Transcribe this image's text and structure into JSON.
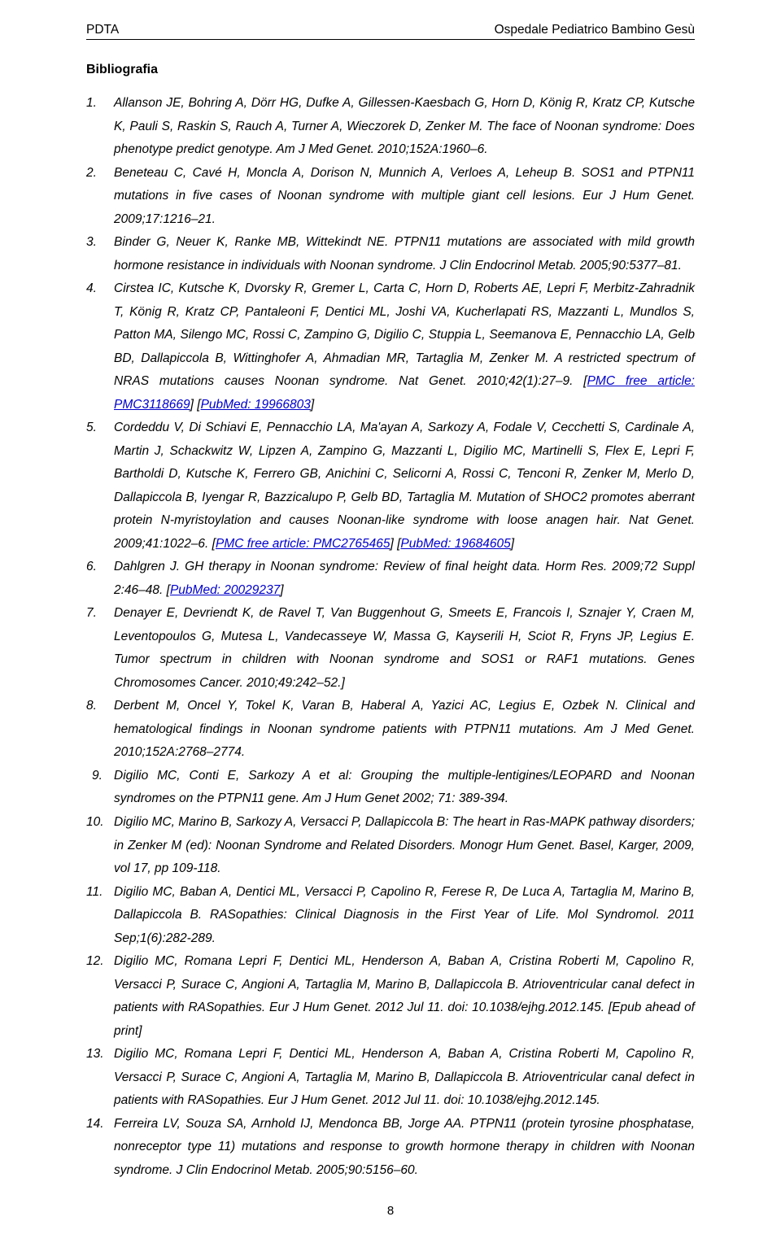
{
  "header": {
    "left": "PDTA",
    "right": "Ospedale Pediatrico Bambino Gesù"
  },
  "section_title": "Bibliografia",
  "page_number": "8",
  "refs": [
    {
      "num": "1.",
      "parts": [
        {
          "t": "Allanson JE, Bohring A, Dörr HG, Dufke A, Gillessen-Kaesbach G, Horn D, König R, Kratz CP, Kutsche K, Pauli S, Raskin S, Rauch A, Turner A, Wieczorek D, Zenker M. The face of Noonan syndrome: Does phenotype predict genotype. Am J Med Genet. 2010;152A:1960–6."
        }
      ]
    },
    {
      "num": "2.",
      "parts": [
        {
          "t": "Beneteau C, Cavé H, Moncla A, Dorison N, Munnich A, Verloes A, Leheup B. SOS1 and PTPN11 mutations in five cases of Noonan syndrome with multiple giant cell lesions. Eur J Hum Genet. 2009;17:1216–21."
        }
      ]
    },
    {
      "num": "3.",
      "parts": [
        {
          "t": "Binder G, Neuer K, Ranke MB, Wittekindt NE. PTPN11 mutations are associated with mild growth hormone resistance in individuals with Noonan syndrome. J Clin Endocrinol Metab. 2005;90:5377–81."
        }
      ]
    },
    {
      "num": "4.",
      "parts": [
        {
          "t": "Cirstea IC, Kutsche K, Dvorsky R, Gremer L, Carta C, Horn D, Roberts AE, Lepri F, Merbitz-Zahradnik T, König R, Kratz CP, Pantaleoni F, Dentici ML, Joshi VA, Kucherlapati RS, Mazzanti L, Mundlos S, Patton MA, Silengo MC, Rossi C, Zampino G, Digilio C, Stuppia L, Seemanova E, Pennacchio LA, Gelb BD, Dallapiccola B, Wittinghofer A, Ahmadian MR, Tartaglia M, Zenker M. A restricted spectrum of NRAS mutations causes Noonan syndrome. Nat Genet. 2010;42(1):27–9. ["
        },
        {
          "t": "PMC free article: PMC3118669",
          "link": true
        },
        {
          "t": "] ["
        },
        {
          "t": "PubMed: 19966803",
          "link": true
        },
        {
          "t": "]"
        }
      ]
    },
    {
      "num": "5.",
      "parts": [
        {
          "t": "Cordeddu V, Di Schiavi E, Pennacchio LA, Ma'ayan A, Sarkozy A, Fodale V, Cecchetti S, Cardinale A, Martin J, Schackwitz W, Lipzen A, Zampino G, Mazzanti L, Digilio MC, Martinelli S, Flex E, Lepri F, Bartholdi D, Kutsche K, Ferrero GB, Anichini C, Selicorni A, Rossi C, Tenconi R, Zenker M, Merlo D, Dallapiccola B, Iyengar R, Bazzicalupo P, Gelb BD, Tartaglia M. Mutation of SHOC2 promotes aberrant protein N-myristoylation and causes Noonan-like syndrome with loose anagen hair. Nat Genet. 2009;41:1022–6. ["
        },
        {
          "t": "PMC free article: PMC2765465",
          "link": true
        },
        {
          "t": "] ["
        },
        {
          "t": "PubMed: 19684605",
          "link": true
        },
        {
          "t": "]"
        }
      ]
    },
    {
      "num": "6.",
      "parts": [
        {
          "t": "Dahlgren J. GH therapy in Noonan syndrome: Review of final height data. Horm Res. 2009;72 Suppl 2:46–48. ["
        },
        {
          "t": "PubMed: 20029237",
          "link": true
        },
        {
          "t": "]"
        }
      ]
    },
    {
      "num": "7.",
      "parts": [
        {
          "t": "Denayer E, Devriendt K, de Ravel T, Van Buggenhout G, Smeets E, Francois I, Sznajer Y, Craen M, Leventopoulos G, Mutesa L, Vandecasseye W, Massa G, Kayserili H, Sciot R, Fryns JP, Legius E. Tumor spectrum in children with Noonan syndrome and SOS1 or RAF1 mutations. Genes Chromosomes Cancer. 2010;49:242–52.]"
        }
      ]
    },
    {
      "num": "8.",
      "parts": [
        {
          "t": "Derbent M, Oncel Y, Tokel K, Varan B, Haberal A, Yazici AC, Legius E, Ozbek N. Clinical and hematological findings in Noonan syndrome patients with PTPN11 mutations. Am J Med Genet. 2010;152A:2768–2774."
        }
      ]
    },
    {
      "num": "9.",
      "indent9": true,
      "center": true,
      "parts": [
        {
          "t": "Digilio MC, Conti E, Sarkozy A et al: Grouping the multiple-lentigines/LEOPARD and Noonan syndromes on the PTPN11 gene. Am J Hum Genet 2002; 71: 389-394."
        }
      ]
    },
    {
      "num": "10.",
      "parts": [
        {
          "t": "Digilio MC, Marino B, Sarkozy A, Versacci P, Dallapiccola B: The heart in Ras-MAPK pathway disorders; in Zenker M (ed): Noonan Syndrome and Related Disorders. Monogr Hum Genet. Basel, Karger, 2009, vol 17, pp 109-118."
        }
      ]
    },
    {
      "num": "11.",
      "parts": [
        {
          "t": "Digilio MC, Baban A, Dentici ML, Versacci P, Capolino R, Ferese R, De Luca A, Tartaglia M, Marino B, Dallapiccola B. RASopathies: Clinical Diagnosis in the First Year of Life. Mol Syndromol. 2011 Sep;1(6):282-289."
        }
      ]
    },
    {
      "num": "12.",
      "parts": [
        {
          "t": "Digilio MC, Romana Lepri F, Dentici ML, Henderson A, Baban A, Cristina Roberti M, Capolino R, Versacci P, Surace C, Angioni A, Tartaglia M, Marino B, Dallapiccola B. Atrioventricular canal defect in patients with RASopathies. Eur J Hum Genet. 2012 Jul 11. doi: 10.1038/ejhg.2012.145. [Epub ahead of print]"
        }
      ]
    },
    {
      "num": "13.",
      "parts": [
        {
          "t": "Digilio MC, Romana Lepri F, Dentici ML, Henderson A, Baban A, Cristina Roberti M, Capolino R, Versacci P, Surace C, Angioni A, Tartaglia M, Marino B, Dallapiccola B. Atrioventricular canal defect in patients with RASopathies. Eur J Hum Genet. 2012 Jul 11. doi: 10.1038/ejhg.2012.145."
        }
      ]
    },
    {
      "num": "14.",
      "parts": [
        {
          "t": "Ferreira LV, Souza SA, Arnhold IJ, Mendonca BB, Jorge AA. PTPN11 (protein tyrosine phosphatase, nonreceptor type 11) mutations and response to growth hormone therapy in children with Noonan syndrome. J Clin Endocrinol Metab. 2005;90:5156–60."
        }
      ]
    }
  ]
}
